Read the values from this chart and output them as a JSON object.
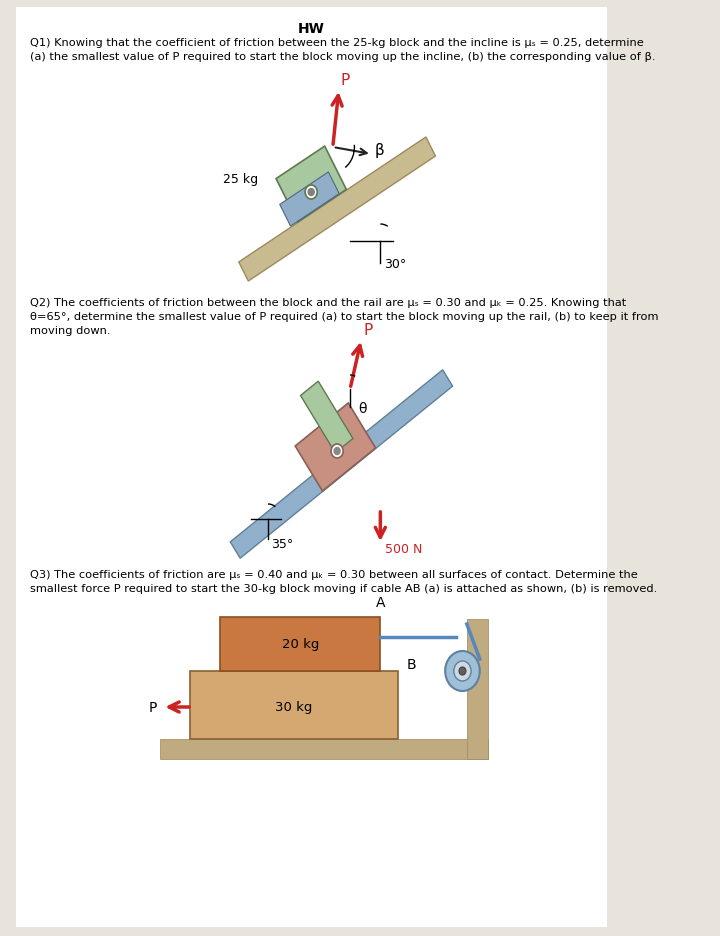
{
  "title": "HW",
  "bg_color": "#e8e4dc",
  "page_bg": "#ffffff",
  "q1_line1": "Q1) Knowing that the coefficient of friction between the 25-kg block and the incline is μₛ = 0.25, determine",
  "q1_line2": "(a) the smallest value of P required to start the block moving up the incline, (b) the corresponding value of β.",
  "q2_line1": "Q2) The coefficients of friction between the block and the rail are μₛ = 0.30 and μₖ = 0.25. Knowing that",
  "q2_line2": "θ=65°, determine the smallest value of P required (a) to start the block moving up the rail, (b) to keep it from",
  "q2_line3": "moving down.",
  "q3_line1": "Q3) The coefficients of friction are μₛ = 0.40 and μₖ = 0.30 between all surfaces of contact. Determine the",
  "q3_line2": "smallest force P required to start the 30-kg block moving if cable AB (a) is attached as shown, (b) is removed.",
  "incline_color": "#c8bb90",
  "block_green": "#a8c8a0",
  "block_blue": "#90aec8",
  "block_salmon": "#c89080",
  "block_orange": "#c8824a",
  "block_tan": "#d4a870",
  "rail_color": "#90b0cc",
  "arrow_red": "#cc2222",
  "floor_color": "#c0aa80",
  "wall_color": "#c0aa80"
}
